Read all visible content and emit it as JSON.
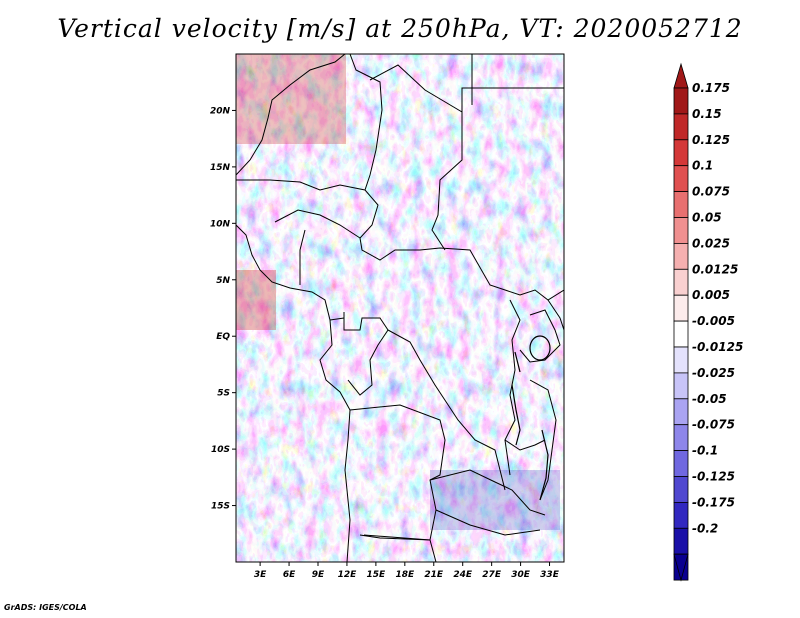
{
  "title": "Vertical velocity [m/s] at 250hPa, VT: 2020052712",
  "credit": "GrADS: IGES/COLA",
  "map": {
    "lat_labels": [
      "20N",
      "15N",
      "10N",
      "5N",
      "EQ",
      "5S",
      "10S",
      "15S"
    ],
    "lat_values": [
      20,
      15,
      10,
      5,
      0,
      -5,
      -10,
      -15
    ],
    "lon_labels": [
      "3E",
      "6E",
      "9E",
      "12E",
      "15E",
      "18E",
      "21E",
      "24E",
      "27E",
      "30E",
      "33E"
    ],
    "lon_values": [
      3,
      6,
      9,
      12,
      15,
      18,
      21,
      24,
      27,
      30,
      33
    ],
    "lat_range": [
      -20,
      25
    ],
    "lon_range": [
      0.5,
      34.5
    ]
  },
  "colorbar": {
    "levels": [
      "0.175",
      "0.15",
      "0.125",
      "0.1",
      "0.075",
      "0.05",
      "0.025",
      "0.0125",
      "0.005",
      "-0.005",
      "-0.0125",
      "-0.025",
      "-0.05",
      "-0.075",
      "-0.1",
      "-0.125",
      "-0.175",
      "-0.2"
    ],
    "colors": [
      "#a01818",
      "#c02828",
      "#d43838",
      "#e05050",
      "#e87070",
      "#f09090",
      "#f5b0b0",
      "#f9d0d0",
      "#fcecec",
      "#ffffff",
      "#e4e2fc",
      "#c8c4f8",
      "#aaa4f2",
      "#8e86ea",
      "#7068e0",
      "#5048d0",
      "#3228c0",
      "#1a10a8",
      "#0a0090"
    ],
    "top_color": "#a01818",
    "bottom_color": "#0a0090"
  }
}
